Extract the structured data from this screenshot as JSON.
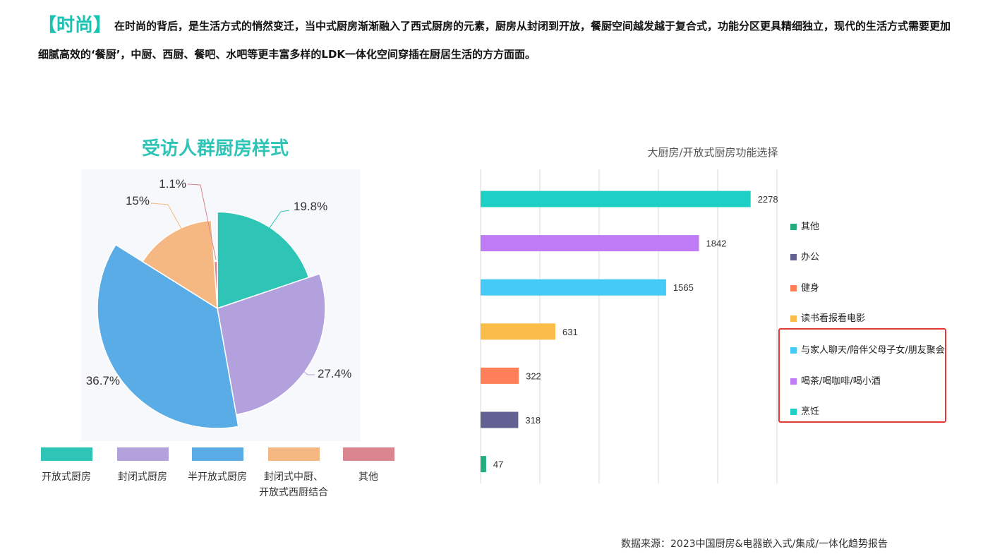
{
  "intro": {
    "tag": "【时尚】",
    "text": "在时尚的背后，是生活方式的悄然变迁，当中式厨房渐渐融入了西式厨房的元素，厨房从封闭到开放，餐厨空间越发越于复合式，功能分区更具精细独立，现代的生活方式需要更加细腻高效的‘餐厨’，中厨、西厨、餐吧、水吧等更丰富多样的LDK一体化空间穿插在厨居生活的方方面面。"
  },
  "chart_data": [
    {
      "type": "pie",
      "title": "受访人群厨房样式",
      "style": "rose",
      "slices": [
        {
          "label": "开放式厨房",
          "value": 19.8,
          "value_label": "19.8%",
          "color": "#2ec4b6"
        },
        {
          "label": "封闭式厨房",
          "value": 27.4,
          "value_label": "27.4%",
          "color": "#b3a1de"
        },
        {
          "label": "半开放式厨房",
          "value": 36.7,
          "value_label": "36.7%",
          "color": "#5aace6"
        },
        {
          "label": "封闭式中厨、开放式西厨结合",
          "value": 15,
          "value_label": "15%",
          "color": "#f6b883"
        },
        {
          "label": "其他",
          "value": 1.1,
          "value_label": "1.1%",
          "color": "#d9848e"
        }
      ],
      "legend_position": "bottom"
    },
    {
      "type": "bar",
      "orientation": "horizontal",
      "title": "大厨房/开放式厨房功能选择",
      "categories": [
        "烹饪",
        "喝茶/喝咖啡/喝小酒",
        "与家人聊天/陪伴父母子女/朋友聚会",
        "读书看报看电影",
        "健身",
        "办公",
        "其他"
      ],
      "values": [
        2278,
        1842,
        1565,
        631,
        322,
        318,
        47
      ],
      "colors": [
        "#1ecfc6",
        "#c07cf5",
        "#45c9f7",
        "#fbbd49",
        "#fe7f58",
        "#636193",
        "#23ac7c"
      ],
      "xlim": [
        0,
        2500
      ],
      "grid": "vertical",
      "legend": [
        {
          "label": "其他",
          "color": "#23ac7c"
        },
        {
          "label": "办公",
          "color": "#636193"
        },
        {
          "label": "健身",
          "color": "#fe7f58"
        },
        {
          "label": "读书看报看电影",
          "color": "#fbbd49"
        },
        {
          "label": "与家人聊天/陪伴父母子女/朋友聚会",
          "color": "#45c9f7"
        },
        {
          "label": "喝茶/喝咖啡/喝小酒",
          "color": "#c07cf5"
        },
        {
          "label": "烹饪",
          "color": "#1ecfc6"
        }
      ],
      "legend_position": "right",
      "highlighted_legend": [
        "与家人聊天/陪伴父母子女/朋友聚会",
        "喝茶/喝咖啡/喝小酒",
        "烹饪"
      ]
    }
  ],
  "source": "数据来源：2023中国厨房&电器嵌入式/集成/一体化趋势报告"
}
